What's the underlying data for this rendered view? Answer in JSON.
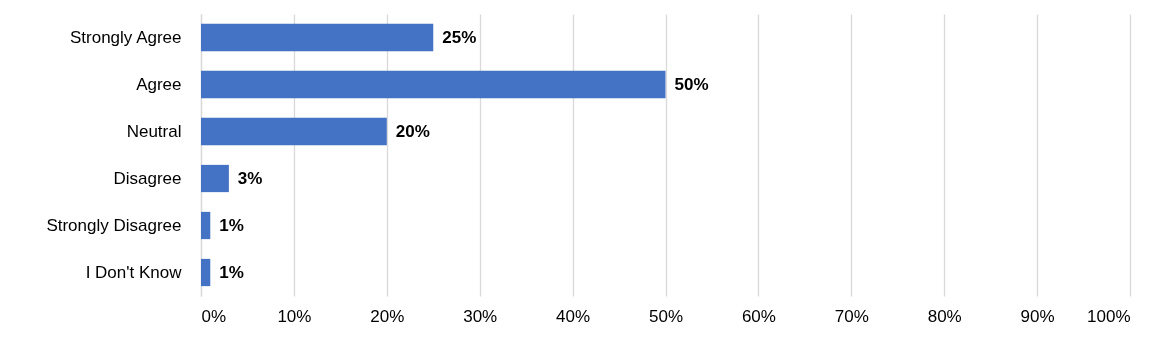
{
  "chart_data": {
    "type": "bar",
    "orientation": "horizontal",
    "categories": [
      "Strongly Agree",
      "Agree",
      "Neutral",
      "Disagree",
      "Strongly Disagree",
      "I Don't Know"
    ],
    "values": [
      25,
      50,
      20,
      3,
      1,
      1
    ],
    "value_labels": [
      "25%",
      "50%",
      "20%",
      "3%",
      "1%",
      "1%"
    ],
    "color": "#4472c4",
    "xlim": [
      0,
      100
    ],
    "xticks": [
      {
        "value": 0,
        "label": "0%"
      },
      {
        "value": 10,
        "label": "10%"
      },
      {
        "value": 20,
        "label": "20%"
      },
      {
        "value": 30,
        "label": "30%"
      },
      {
        "value": 40,
        "label": "40%"
      },
      {
        "value": 50,
        "label": "50%"
      },
      {
        "value": 60,
        "label": "60%"
      },
      {
        "value": 70,
        "label": "70%"
      },
      {
        "value": 80,
        "label": "80%"
      },
      {
        "value": 90,
        "label": "90%"
      },
      {
        "value": 100,
        "label": "100%"
      }
    ],
    "grid": "x"
  }
}
